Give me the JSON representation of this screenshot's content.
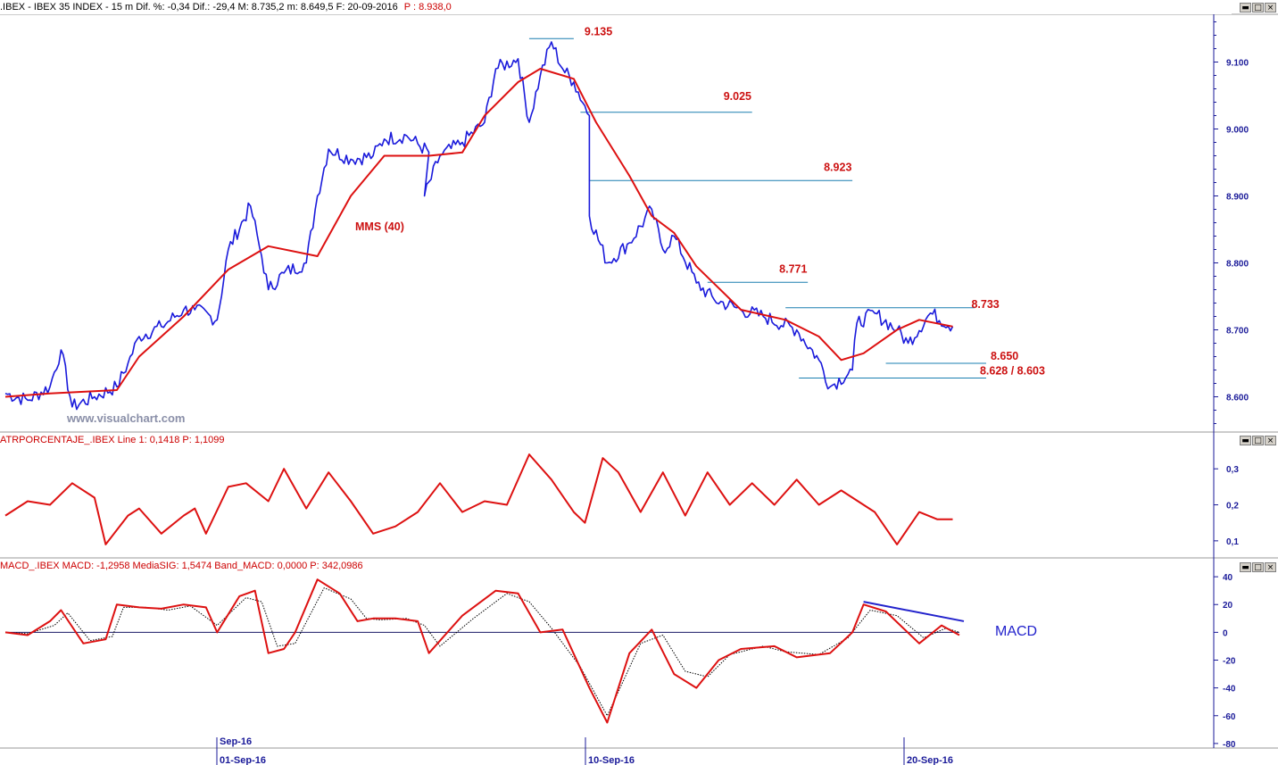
{
  "colors": {
    "price": "#1a1adb",
    "ma": "#dd1111",
    "level_line": "#1a7fb0",
    "annotation_red": "#cc1111",
    "macd_line": "#dd1111",
    "macd_signal": "#000000",
    "macd_trend": "#2222cc",
    "axis": "#1a1a99",
    "watermark": "#8a8fa8"
  },
  "main_pane": {
    "title_left": ".IBEX - IBEX 35 INDEX -  15 m  Dif. %: -0,34  Dif.: -29,4  M: 8.735,2  m: 8.649,5  F: 20-09-2016",
    "title_right": "P : 8.938,0",
    "watermark": "www.visualchart.com",
    "ma_label": "MMS (40)",
    "y_ticks": [
      "9.100",
      "9.000",
      "8.900",
      "8.800",
      "8.700",
      "8.600"
    ],
    "annotations": [
      "9.135",
      "9.025",
      "8.923",
      "8.771",
      "8.733",
      "8.650",
      "8.628 / 8.603"
    ]
  },
  "atr_pane": {
    "title": "ATRPORCENTAJE_.IBEX Line 1: 0,1418  P: 1,1099",
    "y_ticks": [
      "0,3",
      "0,2",
      "0,1"
    ]
  },
  "macd_pane": {
    "title": "MACD_.IBEX MACD: -1,2958  MediaSIG: 1,5474  Band_MACD: 0,0000  P: 342,0986",
    "label": "MACD",
    "y_ticks": [
      "40",
      "20",
      "0",
      "-20",
      "-40",
      "-60",
      "-80"
    ]
  },
  "x_axis": {
    "month_label": "Sep-16",
    "date_labels": [
      "01-Sep-16",
      "10-Sep-16",
      "20-Sep-16"
    ]
  },
  "window_buttons": {
    "min": "▬",
    "max": "□",
    "close": "×"
  },
  "chart_data": [
    {
      "type": "line",
      "title": ".IBEX - IBEX 35 INDEX - 15 m",
      "xlabel": "",
      "ylabel": "",
      "ylim": [
        8550,
        9170
      ],
      "x_range_bars": [
        0,
        430
      ],
      "x_date_markers": [
        {
          "bar": 96,
          "label": "01-Sep-16"
        },
        {
          "bar": 260,
          "label": "10-Sep-16"
        },
        {
          "bar": 405,
          "label": "20-Sep-16"
        }
      ],
      "series": [
        {
          "name": "",
          "comment": "IBEX 35 15-minute price, (bar index, price)",
          "points": [
            [
              0,
              8605
            ],
            [
              10,
              8595
            ],
            [
              20,
              8615
            ],
            [
              25,
              8670
            ],
            [
              30,
              8585
            ],
            [
              40,
              8600
            ],
            [
              50,
              8615
            ],
            [
              55,
              8650
            ],
            [
              60,
              8690
            ],
            [
              70,
              8705
            ],
            [
              80,
              8730
            ],
            [
              85,
              8730
            ],
            [
              95,
              8715
            ],
            [
              100,
              8820
            ],
            [
              110,
              8885
            ],
            [
              115,
              8810
            ],
            [
              118,
              8760
            ],
            [
              125,
              8785
            ],
            [
              135,
              8800
            ],
            [
              140,
              8900
            ],
            [
              145,
              8970
            ],
            [
              155,
              8955
            ],
            [
              165,
              8960
            ],
            [
              170,
              8985
            ],
            [
              180,
              8990
            ],
            [
              190,
              8965
            ],
            [
              188,
              8900
            ],
            [
              195,
              8960
            ],
            [
              205,
              8980
            ],
            [
              215,
              9010
            ],
            [
              220,
              9090
            ],
            [
              230,
              9105
            ],
            [
              235,
              9010
            ],
            [
              240,
              9080
            ],
            [
              245,
              9130
            ],
            [
              250,
              9090
            ],
            [
              255,
              9070
            ],
            [
              262,
              9020
            ],
            [
              262,
              8870
            ],
            [
              270,
              8800
            ],
            [
              280,
              8830
            ],
            [
              290,
              8880
            ],
            [
              295,
              8820
            ],
            [
              300,
              8840
            ],
            [
              310,
              8770
            ],
            [
              318,
              8745
            ],
            [
              330,
              8730
            ],
            [
              340,
              8720
            ],
            [
              355,
              8700
            ],
            [
              365,
              8655
            ],
            [
              370,
              8615
            ],
            [
              380,
              8640
            ],
            [
              382,
              8710
            ],
            [
              390,
              8725
            ],
            [
              400,
              8700
            ],
            [
              405,
              8680
            ],
            [
              415,
              8725
            ],
            [
              425,
              8705
            ]
          ]
        },
        {
          "name": "MMS (40)",
          "points": [
            [
              0,
              8600
            ],
            [
              20,
              8605
            ],
            [
              50,
              8610
            ],
            [
              60,
              8660
            ],
            [
              80,
              8720
            ],
            [
              100,
              8790
            ],
            [
              118,
              8825
            ],
            [
              140,
              8810
            ],
            [
              155,
              8900
            ],
            [
              170,
              8960
            ],
            [
              190,
              8960
            ],
            [
              205,
              8965
            ],
            [
              215,
              9020
            ],
            [
              230,
              9070
            ],
            [
              240,
              9090
            ],
            [
              255,
              9075
            ],
            [
              265,
              9010
            ],
            [
              280,
              8930
            ],
            [
              290,
              8870
            ],
            [
              300,
              8845
            ],
            [
              310,
              8795
            ],
            [
              330,
              8730
            ],
            [
              350,
              8715
            ],
            [
              365,
              8690
            ],
            [
              375,
              8655
            ],
            [
              385,
              8665
            ],
            [
              400,
              8700
            ],
            [
              410,
              8715
            ],
            [
              425,
              8705
            ]
          ]
        },
        {
          "name": "",
          "comment": "horizontal support and resistance levels, (level, start bar, end bar)",
          "levels": [
            [
              9135,
              235,
              255
            ],
            [
              9025,
              258,
              335
            ],
            [
              8923,
              262,
              380
            ],
            [
              8771,
              315,
              360
            ],
            [
              8733,
              350,
              435
            ],
            [
              8650,
              395,
              440
            ],
            [
              8628,
              356,
              440
            ]
          ]
        }
      ]
    },
    {
      "type": "line",
      "title": "ATRPORCENTAJE_.IBEX",
      "ylim": [
        0.06,
        0.36
      ],
      "y_ticks": [
        0.1,
        0.2,
        0.3
      ],
      "series": [
        {
          "name": "Line 1",
          "points": [
            [
              0,
              0.17
            ],
            [
              10,
              0.21
            ],
            [
              20,
              0.2
            ],
            [
              30,
              0.26
            ],
            [
              40,
              0.22
            ],
            [
              45,
              0.09
            ],
            [
              55,
              0.17
            ],
            [
              60,
              0.19
            ],
            [
              70,
              0.12
            ],
            [
              80,
              0.17
            ],
            [
              85,
              0.19
            ],
            [
              90,
              0.12
            ],
            [
              100,
              0.25
            ],
            [
              108,
              0.26
            ],
            [
              118,
              0.21
            ],
            [
              125,
              0.3
            ],
            [
              135,
              0.19
            ],
            [
              145,
              0.29
            ],
            [
              155,
              0.21
            ],
            [
              165,
              0.12
            ],
            [
              175,
              0.14
            ],
            [
              185,
              0.18
            ],
            [
              195,
              0.26
            ],
            [
              205,
              0.18
            ],
            [
              215,
              0.21
            ],
            [
              225,
              0.2
            ],
            [
              235,
              0.34
            ],
            [
              245,
              0.27
            ],
            [
              255,
              0.18
            ],
            [
              260,
              0.15
            ],
            [
              268,
              0.33
            ],
            [
              275,
              0.29
            ],
            [
              285,
              0.18
            ],
            [
              295,
              0.29
            ],
            [
              305,
              0.17
            ],
            [
              315,
              0.29
            ],
            [
              325,
              0.2
            ],
            [
              335,
              0.26
            ],
            [
              345,
              0.2
            ],
            [
              355,
              0.27
            ],
            [
              365,
              0.2
            ],
            [
              375,
              0.24
            ],
            [
              390,
              0.18
            ],
            [
              400,
              0.09
            ],
            [
              410,
              0.18
            ],
            [
              418,
              0.16
            ],
            [
              425,
              0.16
            ]
          ]
        }
      ]
    },
    {
      "type": "line",
      "title": "MACD_.IBEX",
      "ylim": [
        -82,
        42
      ],
      "y_ticks": [
        40,
        20,
        0,
        -20,
        -40,
        -60,
        -80
      ],
      "series": [
        {
          "name": "MACD",
          "points": [
            [
              0,
              0
            ],
            [
              10,
              -2
            ],
            [
              20,
              8
            ],
            [
              25,
              16
            ],
            [
              35,
              -8
            ],
            [
              45,
              -5
            ],
            [
              50,
              20
            ],
            [
              60,
              18
            ],
            [
              70,
              17
            ],
            [
              80,
              20
            ],
            [
              90,
              18
            ],
            [
              95,
              0
            ],
            [
              105,
              26
            ],
            [
              112,
              30
            ],
            [
              118,
              -15
            ],
            [
              125,
              -12
            ],
            [
              130,
              0
            ],
            [
              140,
              38
            ],
            [
              150,
              28
            ],
            [
              158,
              8
            ],
            [
              165,
              10
            ],
            [
              175,
              10
            ],
            [
              185,
              8
            ],
            [
              190,
              -15
            ],
            [
              205,
              12
            ],
            [
              220,
              30
            ],
            [
              230,
              28
            ],
            [
              240,
              0
            ],
            [
              250,
              2
            ],
            [
              262,
              -40
            ],
            [
              270,
              -65
            ],
            [
              280,
              -15
            ],
            [
              290,
              2
            ],
            [
              300,
              -30
            ],
            [
              310,
              -40
            ],
            [
              320,
              -20
            ],
            [
              330,
              -12
            ],
            [
              345,
              -10
            ],
            [
              355,
              -18
            ],
            [
              370,
              -15
            ],
            [
              380,
              0
            ],
            [
              385,
              20
            ],
            [
              395,
              15
            ],
            [
              410,
              -8
            ],
            [
              420,
              5
            ],
            [
              428,
              -2
            ]
          ]
        },
        {
          "name": "MediaSIG",
          "points": [
            [
              0,
              0
            ],
            [
              10,
              -1
            ],
            [
              22,
              5
            ],
            [
              28,
              14
            ],
            [
              38,
              -6
            ],
            [
              48,
              -3
            ],
            [
              53,
              18
            ],
            [
              63,
              18
            ],
            [
              73,
              16
            ],
            [
              83,
              19
            ],
            [
              95,
              5
            ],
            [
              108,
              25
            ],
            [
              115,
              22
            ],
            [
              122,
              -10
            ],
            [
              130,
              -8
            ],
            [
              143,
              32
            ],
            [
              155,
              24
            ],
            [
              162,
              10
            ],
            [
              168,
              9
            ],
            [
              180,
              10
            ],
            [
              188,
              5
            ],
            [
              195,
              -10
            ],
            [
              210,
              10
            ],
            [
              225,
              28
            ],
            [
              235,
              22
            ],
            [
              245,
              3
            ],
            [
              258,
              -25
            ],
            [
              270,
              -60
            ],
            [
              285,
              -8
            ],
            [
              295,
              -2
            ],
            [
              305,
              -28
            ],
            [
              315,
              -32
            ],
            [
              325,
              -16
            ],
            [
              340,
              -10
            ],
            [
              350,
              -14
            ],
            [
              365,
              -16
            ],
            [
              378,
              -4
            ],
            [
              388,
              16
            ],
            [
              400,
              12
            ],
            [
              412,
              -4
            ],
            [
              422,
              3
            ],
            [
              428,
              0
            ]
          ]
        }
      ],
      "trend_line": [
        [
          385,
          22
        ],
        [
          430,
          8
        ]
      ]
    }
  ]
}
